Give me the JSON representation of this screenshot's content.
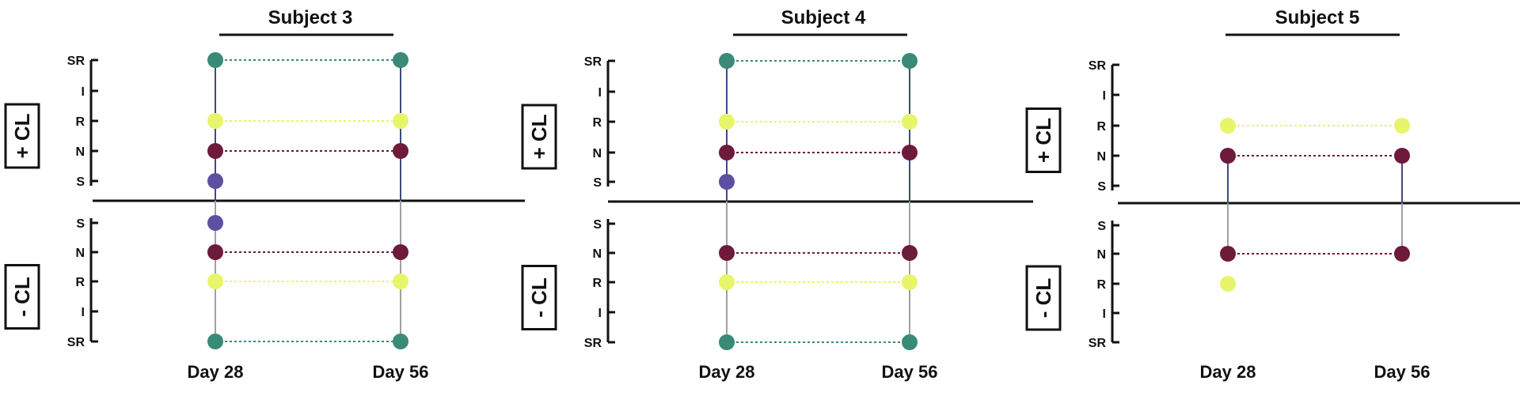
{
  "chart_data": [
    {
      "type": "scatter",
      "title": "Subject 3",
      "groups": [
        "+ CL",
        "- CL"
      ],
      "levels_top": [
        "SR",
        "I",
        "R",
        "N",
        "S"
      ],
      "levels_bottom": [
        "S",
        "N",
        "R",
        "I",
        "SR"
      ],
      "x": [
        "Day 28",
        "Day 56"
      ],
      "series": [
        {
          "color": "#3a8a78",
          "values": [
            {
              "half": "+CL",
              "level": "SR"
            },
            {
              "half": "+CL",
              "level": "SR"
            }
          ]
        },
        {
          "color": "#e8f56a",
          "values": [
            {
              "half": "+CL",
              "level": "R"
            },
            {
              "half": "+CL",
              "level": "R"
            }
          ]
        },
        {
          "color": "#6e1a3a",
          "values": [
            {
              "half": "+CL",
              "level": "N"
            },
            {
              "half": "+CL",
              "level": "N"
            }
          ]
        },
        {
          "color": "#5f4fa0",
          "values": [
            {
              "half": "+CL",
              "level": "S"
            },
            null
          ]
        },
        {
          "color": "#5f4fa0",
          "values": [
            {
              "half": "-CL",
              "level": "S"
            },
            null
          ]
        },
        {
          "color": "#6e1a3a",
          "values": [
            {
              "half": "-CL",
              "level": "N"
            },
            {
              "half": "-CL",
              "level": "N"
            }
          ]
        },
        {
          "color": "#e8f56a",
          "values": [
            {
              "half": "-CL",
              "level": "R"
            },
            {
              "half": "-CL",
              "level": "R"
            }
          ]
        },
        {
          "color": "#3a8a78",
          "values": [
            {
              "half": "-CL",
              "level": "SR"
            },
            {
              "half": "-CL",
              "level": "SR"
            }
          ]
        }
      ],
      "vertical_extent_top": [
        "SR",
        "SR"
      ],
      "vertical_extent_bottom": [
        "SR",
        "SR"
      ]
    },
    {
      "type": "scatter",
      "title": "Subject 4",
      "groups": [
        "+ CL",
        "- CL"
      ],
      "levels_top": [
        "SR",
        "I",
        "R",
        "N",
        "S"
      ],
      "levels_bottom": [
        "S",
        "N",
        "R",
        "I",
        "SR"
      ],
      "x": [
        "Day 28",
        "Day 56"
      ],
      "series": [
        {
          "color": "#3a8a78",
          "values": [
            {
              "half": "+CL",
              "level": "SR"
            },
            {
              "half": "+CL",
              "level": "SR"
            }
          ]
        },
        {
          "color": "#e8f56a",
          "values": [
            {
              "half": "+CL",
              "level": "R"
            },
            {
              "half": "+CL",
              "level": "R"
            }
          ]
        },
        {
          "color": "#6e1a3a",
          "values": [
            {
              "half": "+CL",
              "level": "N"
            },
            {
              "half": "+CL",
              "level": "N"
            }
          ]
        },
        {
          "color": "#5f4fa0",
          "values": [
            {
              "half": "+CL",
              "level": "S"
            },
            null
          ]
        },
        {
          "color": "#6e1a3a",
          "values": [
            {
              "half": "-CL",
              "level": "N"
            },
            {
              "half": "-CL",
              "level": "N"
            }
          ]
        },
        {
          "color": "#e8f56a",
          "values": [
            {
              "half": "-CL",
              "level": "R"
            },
            {
              "half": "-CL",
              "level": "R"
            }
          ]
        },
        {
          "color": "#3a8a78",
          "values": [
            {
              "half": "-CL",
              "level": "SR"
            },
            {
              "half": "-CL",
              "level": "SR"
            }
          ]
        }
      ],
      "vertical_extent_top": [
        "SR",
        "SR"
      ],
      "vertical_extent_bottom": [
        "SR",
        "SR"
      ]
    },
    {
      "type": "scatter",
      "title": "Subject 5",
      "groups": [
        "+ CL",
        "- CL"
      ],
      "levels_top": [
        "SR",
        "I",
        "R",
        "N",
        "S"
      ],
      "levels_bottom": [
        "S",
        "N",
        "R",
        "I",
        "SR"
      ],
      "x": [
        "Day 28",
        "Day 56"
      ],
      "series": [
        {
          "color": "#e8f56a",
          "values": [
            {
              "half": "+CL",
              "level": "R"
            },
            {
              "half": "+CL",
              "level": "R"
            }
          ]
        },
        {
          "color": "#6e1a3a",
          "values": [
            {
              "half": "+CL",
              "level": "N"
            },
            {
              "half": "+CL",
              "level": "N"
            }
          ]
        },
        {
          "color": "#6e1a3a",
          "values": [
            {
              "half": "-CL",
              "level": "N"
            },
            {
              "half": "-CL",
              "level": "N"
            }
          ]
        },
        {
          "color": "#e8f56a",
          "values": [
            {
              "half": "-CL",
              "level": "R"
            },
            null
          ]
        }
      ],
      "vertical_extent_top": [
        "N",
        "N"
      ],
      "vertical_extent_bottom": [
        "N",
        "N"
      ]
    }
  ],
  "colors": {
    "axis": "#111111",
    "line_top": "#3d4a80",
    "line_bottom": "#a0a0a0"
  }
}
